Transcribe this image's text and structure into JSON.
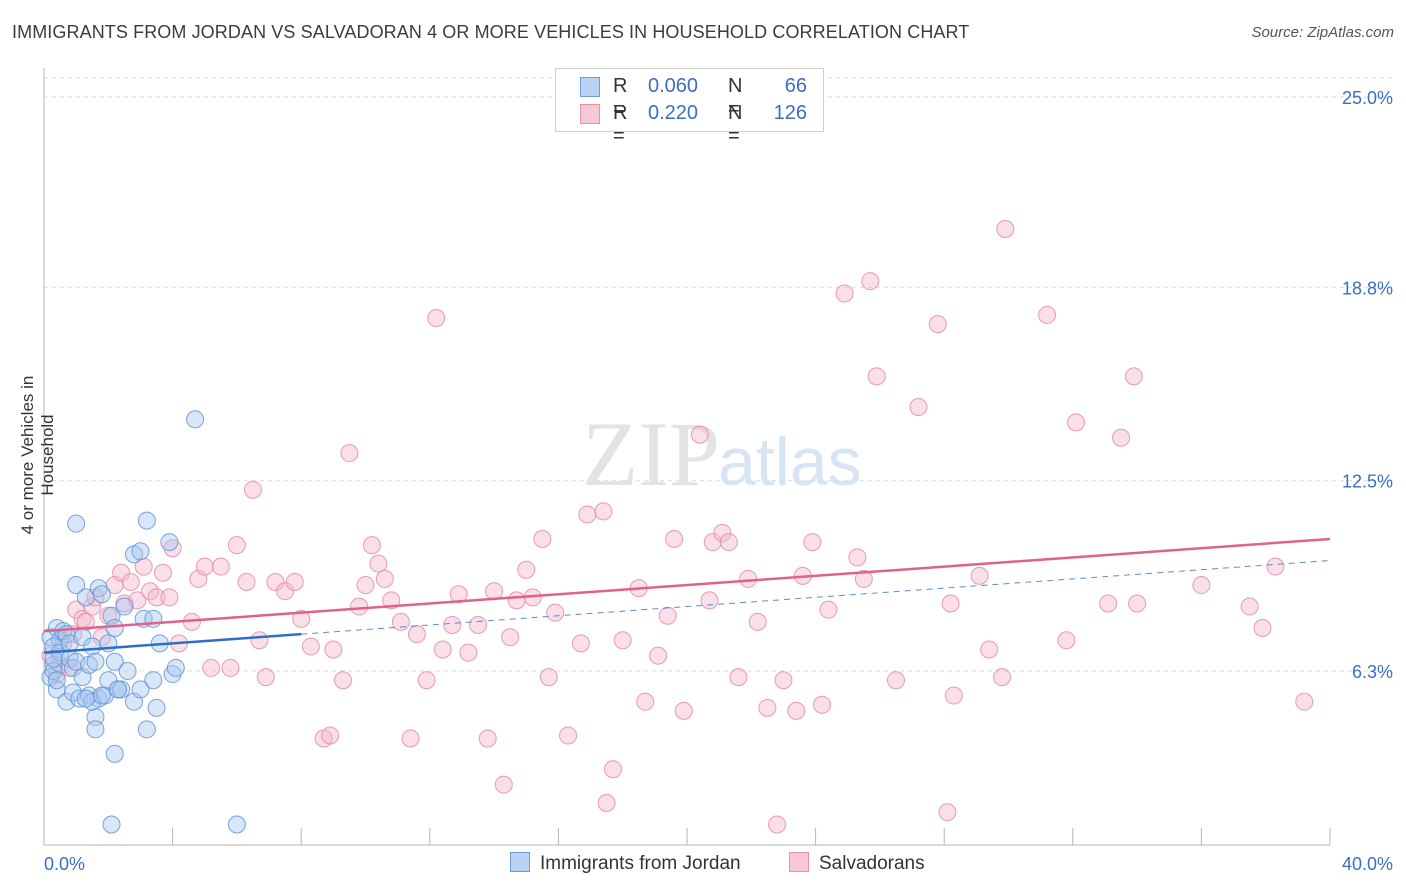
{
  "title": "IMMIGRANTS FROM JORDAN VS SALVADORAN 4 OR MORE VEHICLES IN HOUSEHOLD CORRELATION CHART",
  "source": "Source: ZipAtlas.com",
  "watermark": {
    "zip": "ZIP",
    "atlas": "atlas"
  },
  "legend": {
    "rows": [
      {
        "r_label": "R =",
        "r_value": "0.060",
        "n_label": "N =",
        "n_value": "66"
      },
      {
        "r_label": "R =",
        "r_value": "0.220",
        "n_label": "N =",
        "n_value": "126"
      }
    ]
  },
  "bottom_legend": {
    "series1": "Immigrants from Jordan",
    "series2": "Salvadorans"
  },
  "chart_data": {
    "type": "scatter",
    "title": "IMMIGRANTS FROM JORDAN VS SALVADORAN 4 OR MORE VEHICLES IN HOUSEHOLD CORRELATION CHART",
    "xlabel": "",
    "ylabel": "4 or more Vehicles in Household",
    "xlim": [
      0,
      40
    ],
    "ylim": [
      0,
      26
    ],
    "x_tick_labels": [
      "0.0%",
      "40.0%"
    ],
    "y_ticks": [
      6.3,
      12.5,
      18.8,
      25.0
    ],
    "y_tick_labels": [
      "6.3%",
      "12.5%",
      "18.8%",
      "25.0%"
    ],
    "grid": true,
    "legend_position": "top-center",
    "colors": {
      "series1_fill": "#a9c7ee",
      "series1_stroke": "#5f95d9",
      "series1_line": "#2e6fc6",
      "series2_fill": "#f5b8cb",
      "series2_stroke": "#e58aa7",
      "series2_line": "#e0608e",
      "tick_text": "#3a6fc4",
      "grid": "#dadada"
    },
    "series": [
      {
        "name": "Immigrants from Jordan",
        "r": 0.06,
        "n": 66,
        "trend": {
          "x": [
            0,
            8
          ],
          "y": [
            6.9,
            7.5
          ]
        },
        "points": [
          [
            0.2,
            7.4
          ],
          [
            0.3,
            6.5
          ],
          [
            0.2,
            6.1
          ],
          [
            0.4,
            7.7
          ],
          [
            0.3,
            6.3
          ],
          [
            0.5,
            7.3
          ],
          [
            0.3,
            7.1
          ],
          [
            0.4,
            5.7
          ],
          [
            0.5,
            6.9
          ],
          [
            0.4,
            6.0
          ],
          [
            0.6,
            7.6
          ],
          [
            0.7,
            7.5
          ],
          [
            0.8,
            6.7
          ],
          [
            0.9,
            6.4
          ],
          [
            1.0,
            6.6
          ],
          [
            0.8,
            7.2
          ],
          [
            0.7,
            5.3
          ],
          [
            0.9,
            5.6
          ],
          [
            1.1,
            5.4
          ],
          [
            1.2,
            6.1
          ],
          [
            1.0,
            9.1
          ],
          [
            1.2,
            7.4
          ],
          [
            1.3,
            8.7
          ],
          [
            1.4,
            6.5
          ],
          [
            1.5,
            7.1
          ],
          [
            1.6,
            6.6
          ],
          [
            1.7,
            9.0
          ],
          [
            1.8,
            8.8
          ],
          [
            1.4,
            5.5
          ],
          [
            1.6,
            4.8
          ],
          [
            1.7,
            5.4
          ],
          [
            1.5,
            5.3
          ],
          [
            1.9,
            5.5
          ],
          [
            2.0,
            7.2
          ],
          [
            2.1,
            8.1
          ],
          [
            2.2,
            7.7
          ],
          [
            2.2,
            6.6
          ],
          [
            2.3,
            5.7
          ],
          [
            2.4,
            5.7
          ],
          [
            2.0,
            6.0
          ],
          [
            1.8,
            5.5
          ],
          [
            1.6,
            4.4
          ],
          [
            2.2,
            3.6
          ],
          [
            2.5,
            8.4
          ],
          [
            2.6,
            6.3
          ],
          [
            2.8,
            10.1
          ],
          [
            2.8,
            5.3
          ],
          [
            3.0,
            10.2
          ],
          [
            3.1,
            8.0
          ],
          [
            3.2,
            11.2
          ],
          [
            3.4,
            8.0
          ],
          [
            3.4,
            6.0
          ],
          [
            3.5,
            5.1
          ],
          [
            3.2,
            4.4
          ],
          [
            3.0,
            5.7
          ],
          [
            3.9,
            10.5
          ],
          [
            4.0,
            6.2
          ],
          [
            4.1,
            6.4
          ],
          [
            3.6,
            7.2
          ],
          [
            2.1,
            1.3
          ],
          [
            6.0,
            1.3
          ],
          [
            4.7,
            14.5
          ],
          [
            1.0,
            11.1
          ],
          [
            0.3,
            6.7
          ],
          [
            2.3,
            5.7
          ],
          [
            1.3,
            5.4
          ]
        ]
      },
      {
        "name": "Salvadorans",
        "r": 0.22,
        "n": 126,
        "trend": {
          "x": [
            0,
            40
          ],
          "y": [
            7.6,
            10.6
          ]
        },
        "points": [
          [
            0.2,
            6.8
          ],
          [
            0.4,
            6.2
          ],
          [
            0.5,
            6.5
          ],
          [
            0.6,
            7.2
          ],
          [
            0.8,
            6.4
          ],
          [
            0.9,
            7.5
          ],
          [
            1.0,
            8.3
          ],
          [
            1.2,
            8.0
          ],
          [
            1.3,
            7.9
          ],
          [
            1.5,
            8.4
          ],
          [
            1.6,
            8.7
          ],
          [
            1.8,
            7.4
          ],
          [
            2.0,
            8.1
          ],
          [
            2.2,
            9.1
          ],
          [
            2.4,
            9.5
          ],
          [
            2.5,
            8.5
          ],
          [
            2.7,
            9.2
          ],
          [
            2.9,
            8.6
          ],
          [
            3.1,
            9.7
          ],
          [
            3.3,
            8.9
          ],
          [
            3.5,
            8.7
          ],
          [
            3.7,
            9.5
          ],
          [
            3.9,
            8.7
          ],
          [
            4.0,
            10.3
          ],
          [
            4.2,
            7.2
          ],
          [
            4.6,
            7.9
          ],
          [
            4.8,
            9.3
          ],
          [
            5.0,
            9.7
          ],
          [
            5.2,
            6.4
          ],
          [
            5.5,
            9.7
          ],
          [
            5.8,
            6.4
          ],
          [
            6.0,
            10.4
          ],
          [
            6.3,
            9.2
          ],
          [
            6.5,
            12.2
          ],
          [
            6.7,
            7.3
          ],
          [
            6.9,
            6.1
          ],
          [
            7.2,
            9.2
          ],
          [
            7.5,
            8.9
          ],
          [
            7.8,
            9.2
          ],
          [
            8.0,
            8.0
          ],
          [
            8.3,
            7.1
          ],
          [
            8.7,
            4.1
          ],
          [
            8.9,
            4.2
          ],
          [
            9.0,
            7.0
          ],
          [
            9.3,
            6.0
          ],
          [
            9.5,
            13.4
          ],
          [
            9.8,
            8.4
          ],
          [
            10.0,
            9.1
          ],
          [
            10.2,
            10.4
          ],
          [
            10.4,
            9.8
          ],
          [
            10.6,
            9.3
          ],
          [
            10.8,
            8.6
          ],
          [
            11.1,
            7.9
          ],
          [
            11.4,
            4.1
          ],
          [
            11.6,
            7.5
          ],
          [
            11.9,
            6.0
          ],
          [
            12.2,
            17.8
          ],
          [
            12.4,
            7.0
          ],
          [
            12.7,
            7.8
          ],
          [
            12.9,
            8.8
          ],
          [
            13.2,
            6.9
          ],
          [
            13.5,
            7.8
          ],
          [
            13.8,
            4.1
          ],
          [
            14.0,
            8.9
          ],
          [
            14.3,
            2.6
          ],
          [
            14.5,
            7.4
          ],
          [
            14.7,
            8.6
          ],
          [
            15.0,
            9.6
          ],
          [
            15.2,
            8.7
          ],
          [
            15.5,
            10.6
          ],
          [
            15.7,
            6.1
          ],
          [
            15.9,
            8.2
          ],
          [
            16.3,
            4.2
          ],
          [
            16.7,
            7.2
          ],
          [
            16.9,
            11.4
          ],
          [
            17.4,
            11.5
          ],
          [
            17.5,
            2.0
          ],
          [
            17.7,
            3.1
          ],
          [
            18.0,
            7.3
          ],
          [
            18.5,
            9.0
          ],
          [
            18.7,
            5.3
          ],
          [
            19.1,
            6.8
          ],
          [
            19.4,
            8.1
          ],
          [
            19.6,
            10.6
          ],
          [
            19.9,
            5.0
          ],
          [
            20.4,
            14.0
          ],
          [
            20.7,
            8.6
          ],
          [
            20.8,
            10.5
          ],
          [
            21.1,
            10.8
          ],
          [
            21.3,
            10.5
          ],
          [
            21.6,
            6.1
          ],
          [
            21.9,
            9.3
          ],
          [
            22.2,
            7.9
          ],
          [
            22.5,
            5.1
          ],
          [
            22.8,
            1.3
          ],
          [
            23.0,
            6.0
          ],
          [
            23.4,
            5.0
          ],
          [
            23.6,
            9.4
          ],
          [
            23.9,
            10.5
          ],
          [
            24.2,
            5.2
          ],
          [
            24.4,
            8.3
          ],
          [
            24.9,
            18.6
          ],
          [
            25.3,
            10.0
          ],
          [
            25.5,
            9.3
          ],
          [
            25.7,
            19.0
          ],
          [
            25.9,
            15.9
          ],
          [
            26.5,
            6.0
          ],
          [
            27.2,
            14.9
          ],
          [
            27.8,
            17.6
          ],
          [
            28.1,
            1.7
          ],
          [
            28.2,
            8.5
          ],
          [
            28.3,
            5.5
          ],
          [
            29.1,
            9.4
          ],
          [
            29.4,
            7.0
          ],
          [
            29.8,
            6.1
          ],
          [
            29.9,
            20.7
          ],
          [
            31.2,
            17.9
          ],
          [
            31.8,
            7.3
          ],
          [
            32.1,
            14.4
          ],
          [
            33.1,
            8.5
          ],
          [
            33.5,
            13.9
          ],
          [
            33.9,
            15.9
          ],
          [
            34.0,
            8.5
          ],
          [
            36.0,
            9.1
          ],
          [
            37.5,
            8.4
          ],
          [
            38.3,
            9.7
          ],
          [
            39.2,
            5.3
          ],
          [
            37.9,
            7.7
          ]
        ]
      }
    ]
  }
}
